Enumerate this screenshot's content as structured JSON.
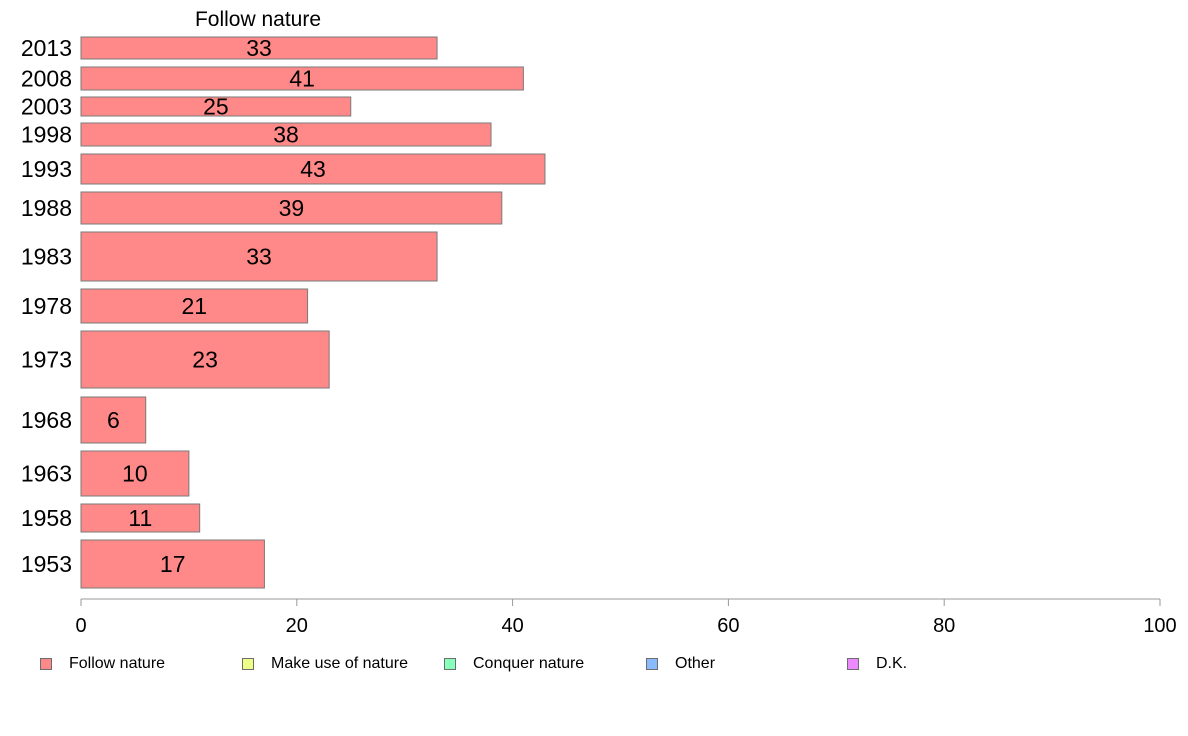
{
  "chart_data": {
    "type": "bar",
    "orientation": "horizontal",
    "title": "Follow nature",
    "categories": [
      "2013",
      "2008",
      "2003",
      "1998",
      "1993",
      "1988",
      "1983",
      "1978",
      "1973",
      "1968",
      "1963",
      "1958",
      "1953"
    ],
    "series": [
      {
        "name": "Follow nature",
        "values": [
          33,
          41,
          25,
          38,
          43,
          39,
          33,
          21,
          23,
          6,
          10,
          11,
          17
        ]
      }
    ],
    "data_labels": [
      "33",
      "41",
      "25",
      "38",
      "43",
      "39",
      "33",
      "21",
      "23",
      "6",
      "10",
      "11",
      "17"
    ],
    "xlim": [
      0,
      100
    ],
    "xticks": [
      "0",
      "20",
      "40",
      "60",
      "80",
      "100"
    ],
    "grid": false,
    "legend_position": "bottom",
    "legend": [
      {
        "label": "Follow nature",
        "color": "#ff8888"
      },
      {
        "label": "Make use of nature",
        "color": "#eeff88"
      },
      {
        "label": "Conquer nature",
        "color": "#88ffbb"
      },
      {
        "label": "Other",
        "color": "#88bbff"
      },
      {
        "label": "D.K.",
        "color": "#ee88ff"
      }
    ],
    "colors": {
      "bar": "#ff8888",
      "bar_stroke": "#7a7a7a",
      "axis": "#999999"
    }
  }
}
